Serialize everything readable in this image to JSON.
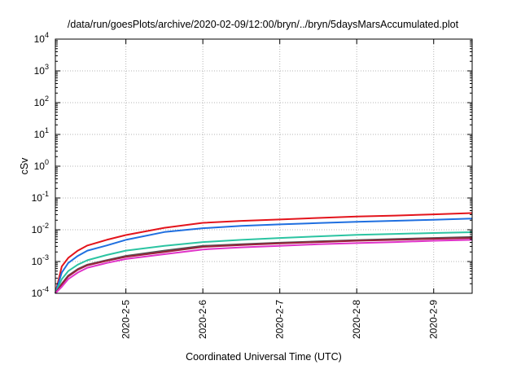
{
  "chart_data": {
    "type": "line",
    "title": "/data/run/goesPlots/archive/2020-02-09/12:00/bryn/../bryn/5daysMarsAccumulated.plot",
    "xlabel": "Coordinated Universal Time (UTC)",
    "ylabel": "cSv",
    "x_scale": "date",
    "y_scale": "log",
    "xlim": [
      "2020-02-04T02:00",
      "2020-02-09T12:00"
    ],
    "ylim": [
      0.0001,
      10000
    ],
    "x_ticks": [
      "2020-2-5",
      "2020-2-6",
      "2020-2-7",
      "2020-2-8",
      "2020-2-9"
    ],
    "y_ticks": [
      {
        "value": 0.0001,
        "base": "10",
        "exp": "-4"
      },
      {
        "value": 0.001,
        "base": "10",
        "exp": "-3"
      },
      {
        "value": 0.01,
        "base": "10",
        "exp": "-2"
      },
      {
        "value": 0.1,
        "base": "10",
        "exp": "-1"
      },
      {
        "value": 1,
        "base": "10",
        "exp": "0"
      },
      {
        "value": 10,
        "base": "10",
        "exp": "1"
      },
      {
        "value": 100,
        "base": "10",
        "exp": "2"
      },
      {
        "value": 1000,
        "base": "10",
        "exp": "3"
      },
      {
        "value": 10000,
        "base": "10",
        "exp": "4"
      }
    ],
    "grid": true,
    "legend": "none",
    "x": [
      "2020-02-04T02:00",
      "2020-02-04T04:00",
      "2020-02-04T06:00",
      "2020-02-04T09:00",
      "2020-02-04T12:00",
      "2020-02-04T18:00",
      "2020-02-05T00:00",
      "2020-02-05T12:00",
      "2020-02-06T00:00",
      "2020-02-06T12:00",
      "2020-02-07T00:00",
      "2020-02-07T12:00",
      "2020-02-08T00:00",
      "2020-02-08T12:00",
      "2020-02-09T00:00",
      "2020-02-09T12:00"
    ],
    "series": [
      {
        "color": "#e3141c",
        "values": [
          0.0001,
          0.0007,
          0.0013,
          0.0022,
          0.0032,
          0.0048,
          0.0068,
          0.0115,
          0.0165,
          0.019,
          0.021,
          0.0235,
          0.026,
          0.028,
          0.0305,
          0.0335
        ]
      },
      {
        "color": "#1f6fe0",
        "values": [
          0.0001,
          0.00045,
          0.0009,
          0.0015,
          0.0022,
          0.0032,
          0.0048,
          0.0085,
          0.0112,
          0.0132,
          0.0148,
          0.0162,
          0.0177,
          0.0192,
          0.0207,
          0.0225
        ]
      },
      {
        "color": "#2bc4a2",
        "values": [
          0.0001,
          0.00028,
          0.0005,
          0.0008,
          0.0011,
          0.0016,
          0.0022,
          0.0031,
          0.0041,
          0.0048,
          0.0055,
          0.0062,
          0.0069,
          0.0074,
          0.0079,
          0.0084
        ]
      },
      {
        "color": "#545454",
        "values": [
          0.0001,
          0.0002,
          0.00036,
          0.00058,
          0.0008,
          0.0011,
          0.0015,
          0.0022,
          0.0031,
          0.0035,
          0.0039,
          0.0043,
          0.0047,
          0.0051,
          0.0055,
          0.0059
        ]
      },
      {
        "color": "#9b1f3a",
        "values": [
          0.0001,
          0.00019,
          0.00034,
          0.00055,
          0.00076,
          0.00105,
          0.0014,
          0.002,
          0.0029,
          0.0033,
          0.0037,
          0.0041,
          0.0045,
          0.0048,
          0.0052,
          0.0055
        ]
      },
      {
        "color": "#e033c8",
        "values": [
          0.0001,
          0.00016,
          0.00028,
          0.00045,
          0.00064,
          0.0009,
          0.0012,
          0.0017,
          0.0024,
          0.0028,
          0.0031,
          0.0035,
          0.0038,
          0.0041,
          0.0045,
          0.0048
        ]
      }
    ]
  }
}
